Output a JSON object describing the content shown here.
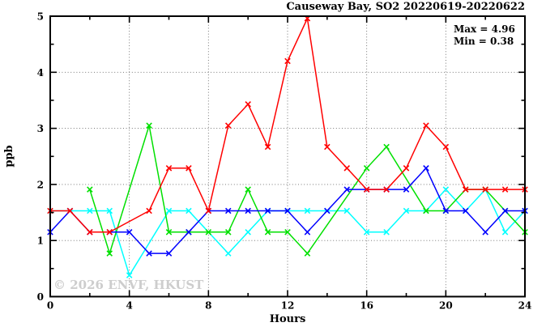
{
  "title": "Causeway Bay, SO2 20220619-20220622",
  "annotation": {
    "max_label": "Max = 4.96",
    "min_label": "Min = 0.38"
  },
  "watermark": "© 2026 ENVF, HKUST",
  "chart_data": {
    "type": "line",
    "title": "Causeway Bay, SO2 20220619-20220622",
    "xlabel": "Hours",
    "ylabel": "ppb",
    "xlim": [
      0,
      24
    ],
    "ylim": [
      0,
      5
    ],
    "xticks_major": [
      0,
      4,
      8,
      12,
      16,
      20,
      24
    ],
    "xticks_minor": [
      2,
      6,
      10,
      14,
      18,
      22
    ],
    "yticks_major": [
      0,
      1,
      2,
      3,
      4,
      5
    ],
    "yticks_minor": [
      0.5,
      1.5,
      2.5,
      3.5,
      4.5
    ],
    "grid_x": [
      4,
      8,
      12,
      16,
      20
    ],
    "grid_y": [
      1,
      2,
      3,
      4
    ],
    "grid_on": true,
    "legend_position": "none",
    "max_value": 4.96,
    "min_value": 0.38,
    "series": [
      {
        "name": "series-cyan",
        "color": "#00ffff",
        "points": [
          [
            0,
            1.53
          ],
          [
            1,
            1.53
          ],
          [
            2,
            1.53
          ],
          [
            3,
            1.53
          ],
          [
            4,
            0.38
          ],
          [
            6,
            1.53
          ],
          [
            7,
            1.53
          ],
          [
            9,
            0.77
          ],
          [
            10,
            1.15
          ],
          [
            11,
            1.53
          ],
          [
            12,
            1.53
          ],
          [
            13,
            1.53
          ],
          [
            14,
            1.53
          ],
          [
            15,
            1.53
          ],
          [
            16,
            1.15
          ],
          [
            17,
            1.15
          ],
          [
            18,
            1.53
          ],
          [
            19,
            1.53
          ],
          [
            20,
            1.91
          ],
          [
            21,
            1.53
          ],
          [
            22,
            1.91
          ],
          [
            23,
            1.15
          ],
          [
            24,
            1.53
          ]
        ]
      },
      {
        "name": "series-green",
        "color": "#00e000",
        "points": [
          [
            2,
            1.91
          ],
          [
            3,
            0.77
          ],
          [
            5,
            3.05
          ],
          [
            6,
            1.15
          ],
          [
            7,
            1.15
          ],
          [
            8,
            1.15
          ],
          [
            9,
            1.15
          ],
          [
            10,
            1.91
          ],
          [
            11,
            1.15
          ],
          [
            12,
            1.15
          ],
          [
            13,
            0.77
          ],
          [
            16,
            2.29
          ],
          [
            17,
            2.67
          ],
          [
            19,
            1.53
          ],
          [
            20,
            1.53
          ],
          [
            21,
            1.91
          ],
          [
            22,
            1.91
          ],
          [
            23,
            1.53
          ],
          [
            24,
            1.15
          ]
        ]
      },
      {
        "name": "series-blue",
        "color": "#0000ff",
        "points": [
          [
            0,
            1.15
          ],
          [
            1,
            1.53
          ],
          [
            2,
            1.15
          ],
          [
            3,
            1.15
          ],
          [
            4,
            1.15
          ],
          [
            5,
            0.77
          ],
          [
            6,
            0.77
          ],
          [
            7,
            1.15
          ],
          [
            8,
            1.53
          ],
          [
            9,
            1.53
          ],
          [
            10,
            1.53
          ],
          [
            11,
            1.53
          ],
          [
            12,
            1.53
          ],
          [
            13,
            1.15
          ],
          [
            14,
            1.53
          ],
          [
            15,
            1.91
          ],
          [
            16,
            1.91
          ],
          [
            17,
            1.91
          ],
          [
            18,
            1.91
          ],
          [
            19,
            2.29
          ],
          [
            20,
            1.53
          ],
          [
            21,
            1.53
          ],
          [
            22,
            1.15
          ],
          [
            23,
            1.53
          ],
          [
            24,
            1.53
          ]
        ]
      },
      {
        "name": "series-red",
        "color": "#ff0000",
        "points": [
          [
            0,
            1.53
          ],
          [
            1,
            1.53
          ],
          [
            2,
            1.15
          ],
          [
            3,
            1.15
          ],
          [
            5,
            1.53
          ],
          [
            6,
            2.29
          ],
          [
            7,
            2.29
          ],
          [
            8,
            1.53
          ],
          [
            9,
            3.05
          ],
          [
            10,
            3.43
          ],
          [
            11,
            2.67
          ],
          [
            12,
            4.2
          ],
          [
            13,
            4.96
          ],
          [
            14,
            2.67
          ],
          [
            15,
            2.29
          ],
          [
            16,
            1.91
          ],
          [
            17,
            1.91
          ],
          [
            18,
            2.29
          ],
          [
            19,
            3.05
          ],
          [
            20,
            2.67
          ],
          [
            21,
            1.91
          ],
          [
            22,
            1.91
          ],
          [
            23,
            1.91
          ],
          [
            24,
            1.91
          ]
        ]
      }
    ]
  }
}
